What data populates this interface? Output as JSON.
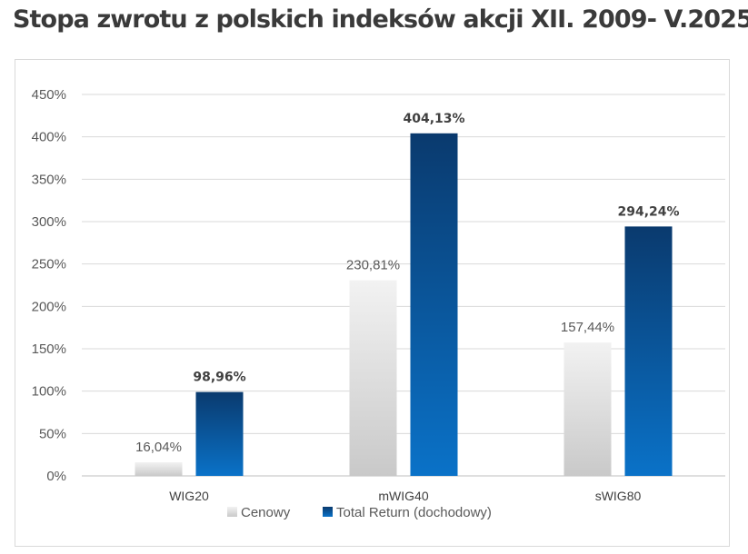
{
  "title": "Stopa zwrotu z polskich indeksów akcji XII. 2009- V.2025",
  "chart_data": {
    "type": "bar",
    "title": "Stopa zwrotu z polskich indeksów akcji XII. 2009- V.2025",
    "xlabel": "",
    "ylabel": "",
    "categories": [
      "WIG20",
      "mWIG40",
      "sWIG80"
    ],
    "series": [
      {
        "name": "Cenowy",
        "values": [
          16.04,
          230.81,
          157.44
        ],
        "labels": [
          "16,04%",
          "230,81%",
          "157,44%"
        ],
        "color_top": "#f2f2f2",
        "color_bottom": "#c9c9c9"
      },
      {
        "name": "Total Return (dochodowy)",
        "values": [
          98.96,
          404.13,
          294.24
        ],
        "labels": [
          "98,96%",
          "404,13%",
          "294,24%"
        ],
        "color_top": "#0a3a6e",
        "color_bottom": "#0a72c8"
      }
    ],
    "ylim": [
      0,
      450
    ],
    "yticks": [
      0,
      50,
      100,
      150,
      200,
      250,
      300,
      350,
      400,
      450
    ],
    "ytick_labels": [
      "0%",
      "50%",
      "100%",
      "150%",
      "200%",
      "250%",
      "300%",
      "350%",
      "400%",
      "450%"
    ],
    "grid": true,
    "legend_position": "bottom"
  }
}
